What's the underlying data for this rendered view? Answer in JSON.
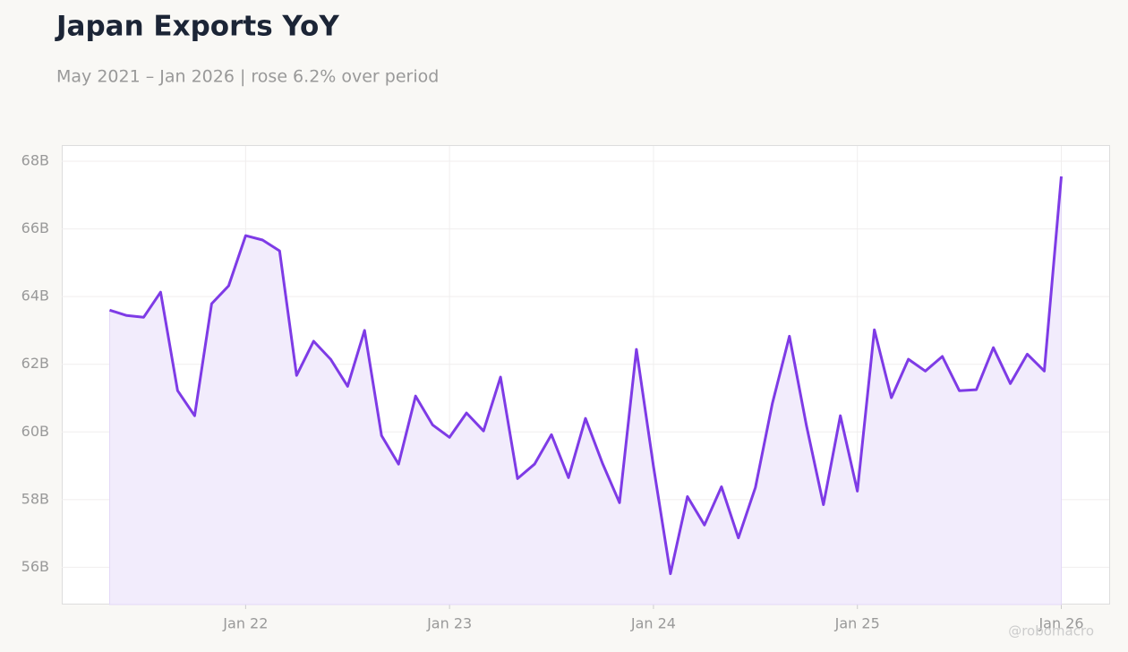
{
  "chart_data": {
    "type": "line",
    "title": "Japan Exports YoY",
    "subtitle": "May 2021 – Jan 2026 | rose 6.2% over period",
    "watermark": "@robomacro",
    "x": [
      "2021-05",
      "2021-06",
      "2021-07",
      "2021-08",
      "2021-09",
      "2021-10",
      "2021-11",
      "2021-12",
      "2022-01",
      "2022-02",
      "2022-03",
      "2022-04",
      "2022-05",
      "2022-06",
      "2022-07",
      "2022-08",
      "2022-09",
      "2022-10",
      "2022-11",
      "2022-12",
      "2023-01",
      "2023-02",
      "2023-03",
      "2023-04",
      "2023-05",
      "2023-06",
      "2023-07",
      "2023-08",
      "2023-09",
      "2023-10",
      "2023-11",
      "2023-12",
      "2024-01",
      "2024-02",
      "2024-03",
      "2024-04",
      "2024-05",
      "2024-06",
      "2024-07",
      "2024-08",
      "2024-09",
      "2024-10",
      "2024-11",
      "2024-12",
      "2025-01",
      "2025-02",
      "2025-03",
      "2025-04",
      "2025-05",
      "2025-06",
      "2025-07",
      "2025-08",
      "2025-09",
      "2025-10",
      "2025-11",
      "2025-12",
      "2026-01"
    ],
    "series": [
      {
        "color": "#7e3be6",
        "fill": "#f2ecfc",
        "values": [
          63.6,
          63.44,
          63.39,
          64.13,
          61.22,
          60.48,
          63.79,
          64.32,
          65.8,
          65.67,
          65.35,
          61.67,
          62.68,
          62.15,
          61.35,
          63.0,
          59.89,
          59.05,
          61.06,
          60.21,
          59.84,
          60.56,
          60.03,
          61.62,
          58.62,
          59.05,
          59.92,
          58.65,
          60.4,
          59.07,
          57.91,
          62.44,
          58.99,
          55.81,
          58.09,
          57.25,
          58.38,
          56.87,
          58.36,
          60.85,
          62.83,
          60.19,
          57.85,
          60.48,
          58.25,
          63.02,
          61.01,
          62.15,
          61.8,
          62.23,
          61.22,
          61.25,
          62.49,
          61.43,
          62.3,
          61.8,
          67.55
        ]
      }
    ],
    "ylim": [
      54.9,
      68.45
    ],
    "yticks": [
      {
        "value": 56,
        "label": "56B"
      },
      {
        "value": 58,
        "label": "58B"
      },
      {
        "value": 60,
        "label": "60B"
      },
      {
        "value": 62,
        "label": "62B"
      },
      {
        "value": 64,
        "label": "64B"
      },
      {
        "value": 66,
        "label": "66B"
      },
      {
        "value": 68,
        "label": "68B"
      }
    ],
    "xticks": [
      {
        "value": "2022-01",
        "label": "Jan 22"
      },
      {
        "value": "2023-01",
        "label": "Jan 23"
      },
      {
        "value": "2024-01",
        "label": "Jan 24"
      },
      {
        "value": "2025-01",
        "label": "Jan 25"
      },
      {
        "value": "2026-01",
        "label": "Jan 26"
      }
    ],
    "grid": true
  }
}
